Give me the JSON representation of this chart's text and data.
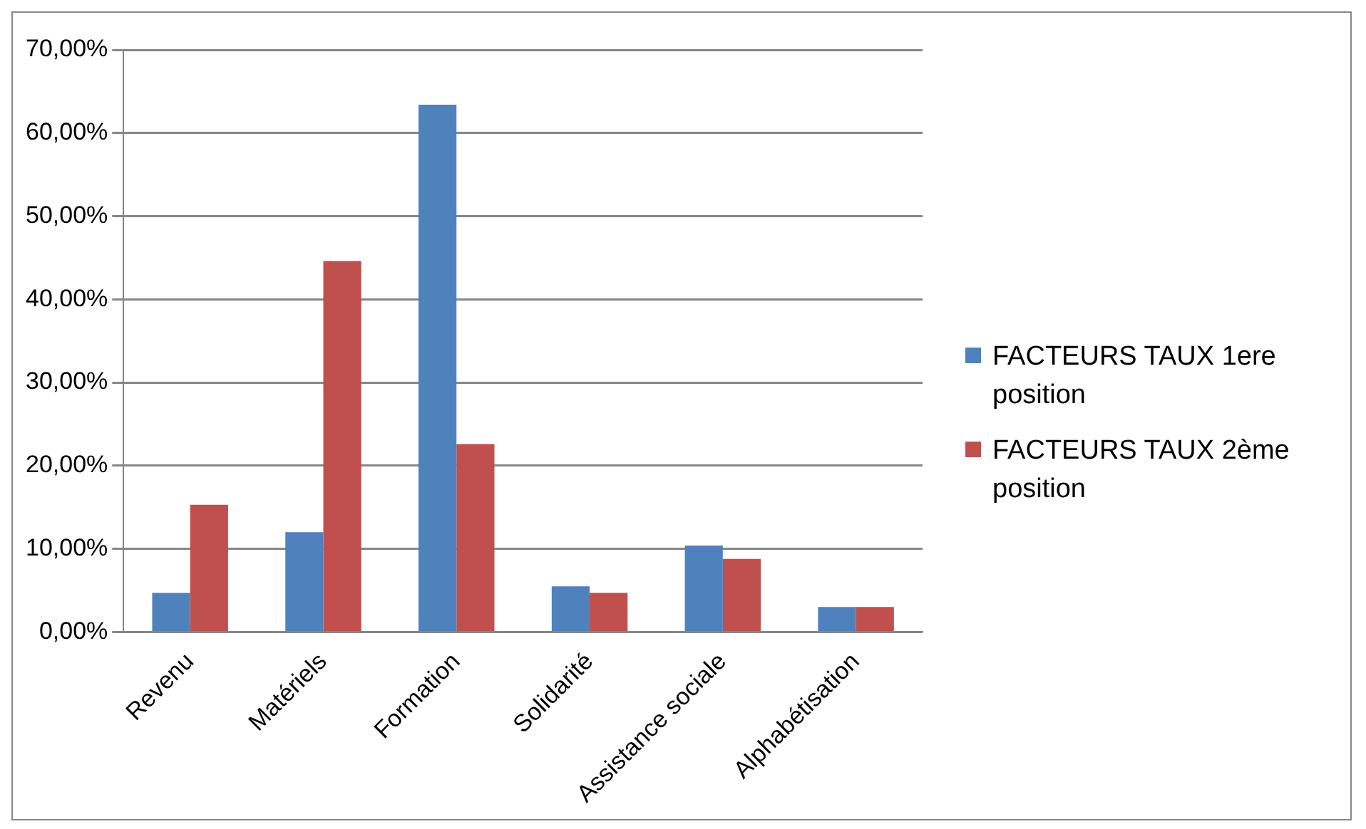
{
  "chart_data": {
    "type": "bar",
    "categories": [
      "Revenu",
      "Matériels",
      "Formation",
      "Solidarité",
      "Assistance sociale",
      "Alphabétisation"
    ],
    "series": [
      {
        "name": "FACTEURS TAUX 1ere position",
        "color": "#4f81bd",
        "values": [
          4.7,
          12.0,
          63.4,
          5.5,
          10.4,
          3.0
        ]
      },
      {
        "name": "FACTEURS TAUX 2ème position",
        "color": "#c0504d",
        "values": [
          15.3,
          44.6,
          22.6,
          4.7,
          8.8,
          3.0
        ]
      }
    ],
    "ylim": [
      0,
      70
    ],
    "yticks": [
      {
        "value": 0,
        "label": "0,00%"
      },
      {
        "value": 10,
        "label": "10,00%"
      },
      {
        "value": 20,
        "label": "20,00%"
      },
      {
        "value": 30,
        "label": "30,00%"
      },
      {
        "value": 40,
        "label": "40,00%"
      },
      {
        "value": 50,
        "label": "50,00%"
      },
      {
        "value": 60,
        "label": "60,00%"
      },
      {
        "value": 70,
        "label": "70,00%"
      }
    ],
    "grid": "y",
    "legend": "right"
  }
}
